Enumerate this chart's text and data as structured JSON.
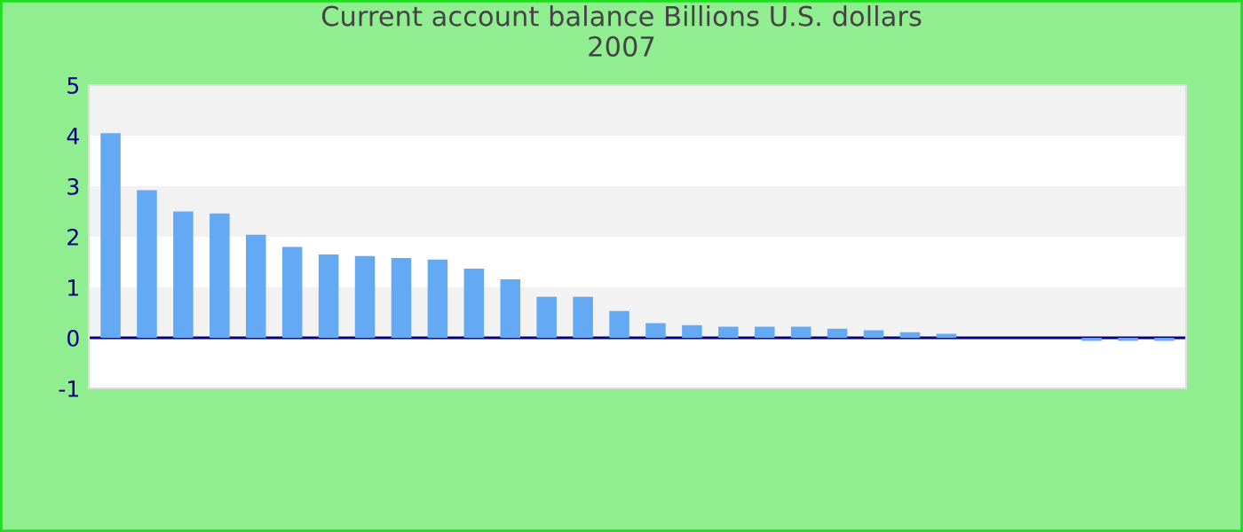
{
  "chart_data": {
    "type": "bar",
    "title": "Current account balance Billions U.S. dollars\n2007",
    "categories": [
      null,
      null,
      null,
      null,
      null,
      null,
      null,
      null,
      null,
      null,
      null,
      null,
      null,
      null,
      null,
      null,
      null,
      null,
      null,
      null,
      null,
      null,
      null,
      null,
      null,
      null,
      null,
      null,
      null,
      null
    ],
    "series": [
      {
        "color": "#63a9f4",
        "values": [
          4.05,
          2.92,
          2.5,
          2.46,
          2.04,
          1.8,
          1.65,
          1.62,
          1.58,
          1.55,
          1.37,
          1.16,
          0.81,
          0.81,
          0.53,
          0.29,
          0.25,
          0.22,
          0.22,
          0.22,
          0.18,
          0.15,
          0.11,
          0.08,
          0,
          0,
          0,
          -0.06,
          -0.06,
          -0.06
        ]
      }
    ],
    "ylim": [
      -1,
      5
    ],
    "yticks": [
      -1,
      0,
      1,
      2,
      3,
      4,
      5
    ],
    "bands": [
      {
        "axis": "y",
        "from": 4,
        "to": 5,
        "color": "#f2f2f2"
      },
      {
        "axis": "y",
        "from": 2,
        "to": 3,
        "color": "#f2f2f2"
      },
      {
        "axis": "y",
        "from": 0,
        "to": 1,
        "color": "#f2f2f2"
      }
    ],
    "ref_lines": [
      {
        "axis": "y",
        "value": 0,
        "color": "#000080"
      }
    ],
    "legend": false
  }
}
